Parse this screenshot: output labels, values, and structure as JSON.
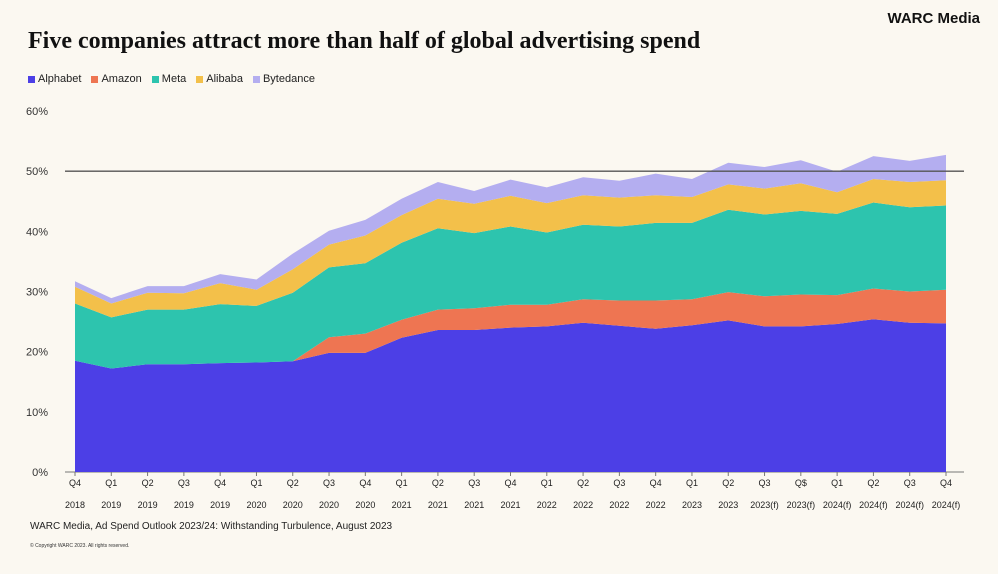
{
  "brand": "WARC Media",
  "source": "WARC Media, Ad Spend Outlook 2023/24: Withstanding Turbulence, August 2023",
  "copyright": "© Copyright WARC 2023. All rights reserved.",
  "chart_data": {
    "type": "area",
    "stacked": true,
    "title": "Five companies attract more than half of global advertising spend",
    "ylim": [
      0,
      60
    ],
    "yticks": [
      0,
      10,
      20,
      30,
      40,
      50,
      60
    ],
    "ytick_labels": [
      "0%",
      "10%",
      "20%",
      "30%",
      "40%",
      "50%",
      "60%"
    ],
    "reference_line": 50,
    "legend_position": "top-left",
    "categories": [
      [
        "Q4",
        "2018"
      ],
      [
        "Q1",
        "2019"
      ],
      [
        "Q2",
        "2019"
      ],
      [
        "Q3",
        "2019"
      ],
      [
        "Q4",
        "2019"
      ],
      [
        "Q1",
        "2020"
      ],
      [
        "Q2",
        "2020"
      ],
      [
        "Q3",
        "2020"
      ],
      [
        "Q4",
        "2020"
      ],
      [
        "Q1",
        "2021"
      ],
      [
        "Q2",
        "2021"
      ],
      [
        "Q3",
        "2021"
      ],
      [
        "Q4",
        "2021"
      ],
      [
        "Q1",
        "2022"
      ],
      [
        "Q2",
        "2022"
      ],
      [
        "Q3",
        "2022"
      ],
      [
        "Q4",
        "2022"
      ],
      [
        "Q1",
        "2023"
      ],
      [
        "Q2",
        "2023"
      ],
      [
        "Q3",
        "2023(f)"
      ],
      [
        "Q$",
        "2023(f)"
      ],
      [
        "Q1",
        "2024(f)"
      ],
      [
        "Q2",
        "2024(f)"
      ],
      [
        "Q3",
        "2024(f)"
      ],
      [
        "Q4",
        "2024(f)"
      ]
    ],
    "series": [
      {
        "name": "Alphabet",
        "color": "#4c3fe6",
        "values": [
          18.5,
          17.2,
          17.9,
          17.9,
          18.1,
          18.2,
          18.4,
          19.8,
          19.8,
          22.3,
          23.6,
          23.6,
          24.0,
          24.2,
          24.8,
          24.3,
          23.8,
          24.4,
          25.2,
          24.2,
          24.2,
          24.6,
          25.4,
          24.8,
          24.7
        ]
      },
      {
        "name": "Amazon",
        "color": "#ee7552",
        "values": [
          0,
          0,
          0,
          0,
          0,
          0,
          0,
          2.6,
          3.2,
          3.0,
          3.4,
          3.6,
          3.8,
          3.6,
          3.9,
          4.2,
          4.7,
          4.3,
          4.7,
          5.0,
          5.3,
          4.8,
          5.1,
          5.2,
          5.6
        ]
      },
      {
        "name": "Meta",
        "color": "#2dc4ae",
        "values": [
          9.5,
          8.5,
          9.1,
          9.1,
          9.8,
          9.4,
          11.4,
          11.6,
          11.7,
          12.8,
          13.5,
          12.5,
          13.0,
          12.0,
          12.4,
          12.3,
          12.9,
          12.7,
          13.7,
          13.6,
          13.9,
          13.5,
          14.3,
          14.0,
          14.0
        ]
      },
      {
        "name": "Alibaba",
        "color": "#f3c04a",
        "values": [
          2.8,
          2.3,
          2.8,
          2.7,
          3.5,
          2.7,
          3.9,
          3.8,
          4.6,
          4.6,
          4.9,
          4.9,
          5.1,
          4.9,
          4.9,
          4.8,
          4.6,
          4.3,
          4.2,
          4.3,
          4.6,
          3.6,
          3.9,
          4.2,
          4.2
        ]
      },
      {
        "name": "Bytedance",
        "color": "#b4aef0",
        "values": [
          0.9,
          0.9,
          1.1,
          1.2,
          1.5,
          1.7,
          2.6,
          2.3,
          2.6,
          2.7,
          2.8,
          2.1,
          2.7,
          2.6,
          3.0,
          2.8,
          3.6,
          3.0,
          3.6,
          3.6,
          3.8,
          3.4,
          3.8,
          3.5,
          4.2
        ]
      }
    ]
  }
}
